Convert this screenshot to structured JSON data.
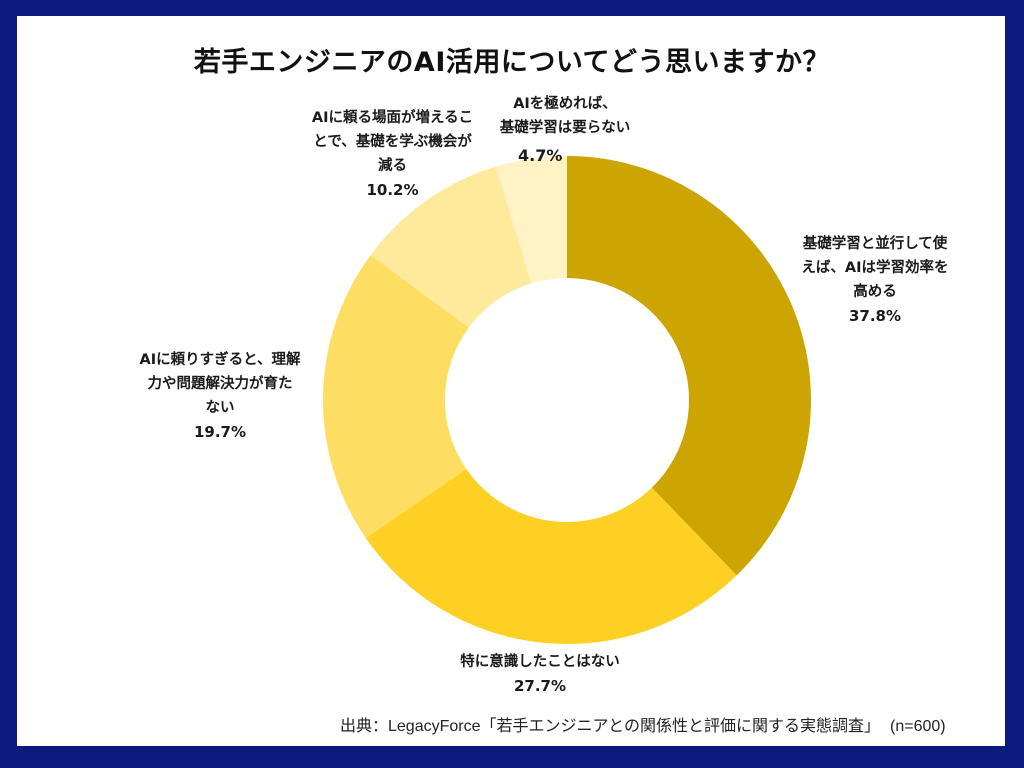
{
  "frame": {
    "border_color": "#0b1a7c",
    "background": "#ffffff"
  },
  "title": "若手エンジニアのAI活用についてどう思いますか？",
  "chart_data": {
    "type": "pie",
    "variant": "donut",
    "title": "若手エンジニアのAI活用についてどう思いますか？",
    "categories": [
      "基礎学習と並行して使えば、AIは学習効率を高める",
      "特に意識したことはない",
      "AIに頼りすぎると、理解力や問題解決力が育たない",
      "AIに頼る場面が増えることで、基礎を学ぶ機会が減る",
      "AIを極めれば、基礎学習は要らない"
    ],
    "values": [
      37.8,
      27.7,
      19.7,
      10.2,
      4.7
    ],
    "unit": "%",
    "colors": [
      "#cca502",
      "#fdd023",
      "#fede62",
      "#ffe99a",
      "#fff3c6"
    ],
    "start_angle_deg": 0,
    "direction": "clockwise",
    "legend": "none (direct labels)",
    "center": [
      567,
      400
    ],
    "outer_radius": 244,
    "inner_radius": 122
  },
  "labels": [
    {
      "lines": [
        "基礎学習と並行して使",
        "えば、AIは学習効率を",
        "高める"
      ],
      "pct": "37.8%"
    },
    {
      "lines": [
        "特に意識したことはない"
      ],
      "pct": "27.7%"
    },
    {
      "lines": [
        "AIに頼りすぎると、理解",
        "力や問題解決力が育た",
        "ない"
      ],
      "pct": "19.7%"
    },
    {
      "lines": [
        "AIに頼る場面が増えるこ",
        "とで、基礎を学ぶ機会が",
        "減る"
      ],
      "pct": "10.2%"
    },
    {
      "lines": [
        "AIを極めれば、",
        "基礎学習は要らない"
      ],
      "pct": "4.7%"
    }
  ],
  "source": {
    "text": "出典：LegacyForce「若手エンジニアとの関係性と評価に関する実態調査」",
    "n": "(n=600)"
  }
}
